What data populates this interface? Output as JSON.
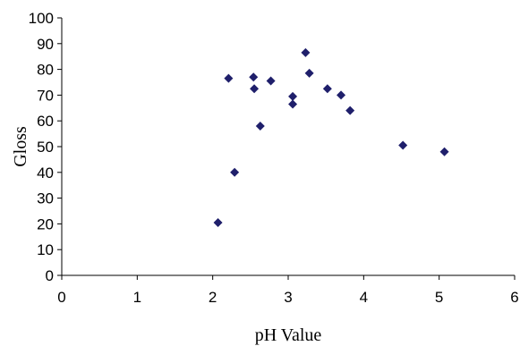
{
  "chart_data": {
    "type": "scatter",
    "title": "",
    "xlabel": "pH Value",
    "ylabel": "Gloss",
    "xlim": [
      0,
      6
    ],
    "ylim": [
      0,
      100
    ],
    "x_ticks": [
      "0",
      "1",
      "2",
      "3",
      "4",
      "5",
      "6"
    ],
    "y_ticks": [
      "0",
      "10",
      "20",
      "30",
      "40",
      "50",
      "60",
      "70",
      "80",
      "90",
      "100"
    ],
    "grid": false,
    "legend": "none",
    "marker": "diamond",
    "marker_color": "#1f1f6b",
    "series": [
      {
        "points": [
          {
            "x": 2.07,
            "y": 20.5
          },
          {
            "x": 2.21,
            "y": 76.5
          },
          {
            "x": 2.29,
            "y": 40.0
          },
          {
            "x": 2.54,
            "y": 77.0
          },
          {
            "x": 2.55,
            "y": 72.5
          },
          {
            "x": 2.63,
            "y": 58.0
          },
          {
            "x": 2.77,
            "y": 75.5
          },
          {
            "x": 3.06,
            "y": 69.5
          },
          {
            "x": 3.06,
            "y": 66.5
          },
          {
            "x": 3.23,
            "y": 86.5
          },
          {
            "x": 3.28,
            "y": 78.5
          },
          {
            "x": 3.52,
            "y": 72.5
          },
          {
            "x": 3.7,
            "y": 70.0
          },
          {
            "x": 3.82,
            "y": 64.0
          },
          {
            "x": 4.52,
            "y": 50.5
          },
          {
            "x": 5.07,
            "y": 48.0
          }
        ]
      }
    ]
  }
}
